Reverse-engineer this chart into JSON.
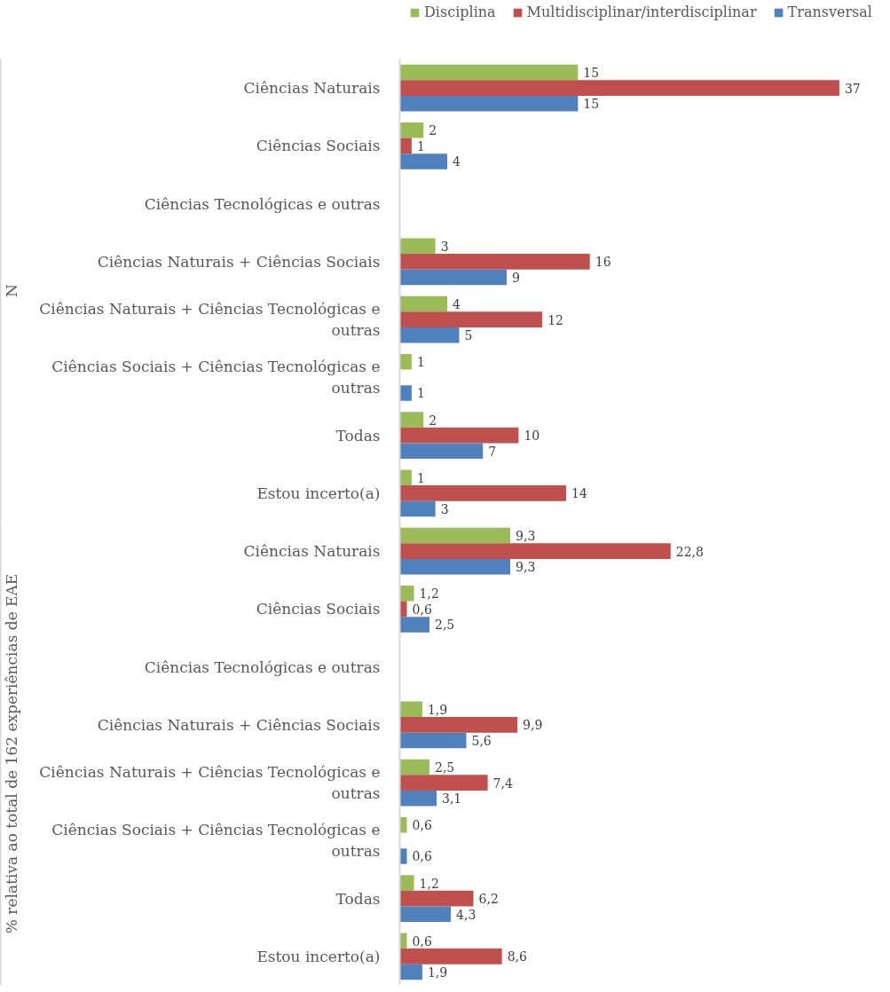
{
  "chart_data": [
    {
      "type": "bar",
      "orientation": "horizontal",
      "ylabel": "N",
      "categories": [
        "Ciências Naturais",
        "Ciências Sociais",
        "Ciências Tecnológicas e outras",
        "Ciências Naturais + Ciências Sociais",
        "Ciências Naturais + Ciências Tecnológicas e outras",
        "Ciências Sociais + Ciências Tecnológicas e outras",
        "Todas",
        "Estou incerto(a)"
      ],
      "series": [
        {
          "name": "Disciplina",
          "color": "#9bbb59",
          "values": [
            15,
            2,
            null,
            3,
            4,
            1,
            2,
            1
          ]
        },
        {
          "name": "Multidisciplinar/interdisciplinar",
          "color": "#c0504d",
          "values": [
            37,
            1,
            null,
            16,
            12,
            null,
            10,
            14
          ]
        },
        {
          "name": "Transversal",
          "color": "#4f81bd",
          "values": [
            15,
            4,
            null,
            9,
            5,
            1,
            7,
            3
          ]
        }
      ],
      "data_labels": true,
      "legend": "top"
    },
    {
      "type": "bar",
      "orientation": "horizontal",
      "ylabel": "% relativa ao total de 162 experiências de EAE",
      "categories": [
        "Ciências Naturais",
        "Ciências Sociais",
        "Ciências Tecnológicas e outras",
        "Ciências Naturais + Ciências Sociais",
        "Ciências Naturais + Ciências Tecnológicas e outras",
        "Ciências Sociais + Ciências Tecnológicas e outras",
        "Todas",
        "Estou incerto(a)"
      ],
      "series": [
        {
          "color": "#9bbb59",
          "values": [
            9.3,
            1.2,
            null,
            1.9,
            2.5,
            0.6,
            1.2,
            0.6
          ],
          "value_labels": [
            "9,3",
            "1,2",
            null,
            "1,9",
            "2,5",
            "0,6",
            "1,2",
            "0,6"
          ]
        },
        {
          "color": "#c0504d",
          "values": [
            22.8,
            0.6,
            null,
            9.9,
            7.4,
            null,
            6.2,
            8.6
          ],
          "value_labels": [
            "22,8",
            "0,6",
            null,
            "9,9",
            "7,4",
            null,
            "6,2",
            "8,6"
          ]
        },
        {
          "color": "#4f81bd",
          "values": [
            9.3,
            2.5,
            null,
            5.6,
            3.1,
            0.6,
            4.3,
            1.9
          ],
          "value_labels": [
            "9,3",
            "2,5",
            null,
            "5,6",
            "3,1",
            "0,6",
            "4,3",
            "1,9"
          ]
        }
      ]
    }
  ]
}
